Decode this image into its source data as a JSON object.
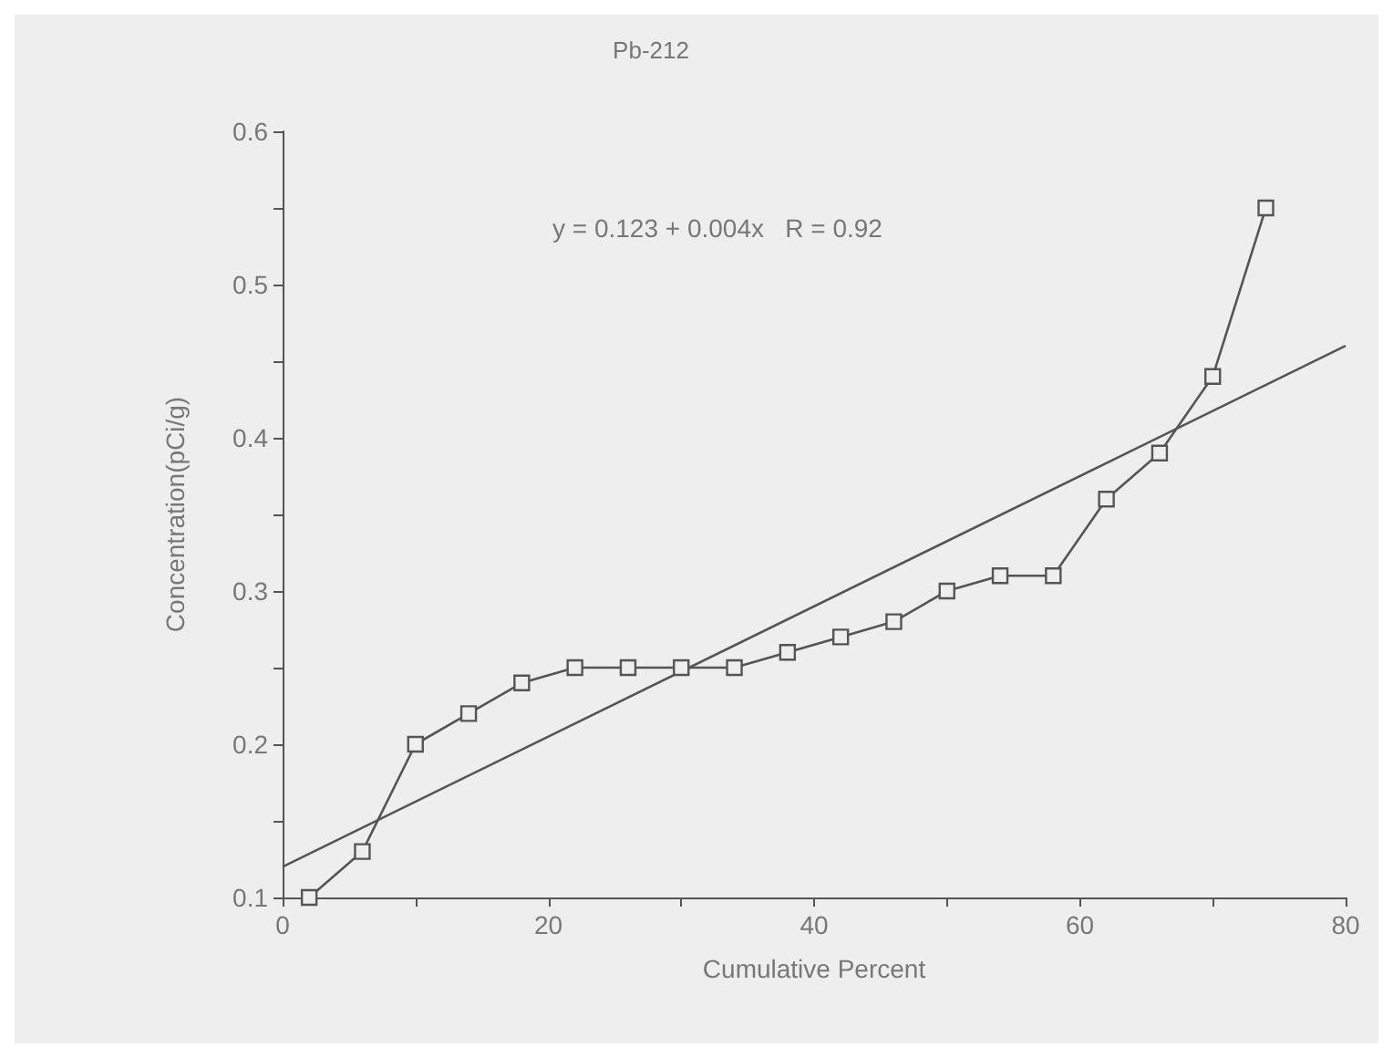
{
  "chart_data": {
    "type": "line",
    "title": "Pb-212",
    "xlabel": "Cumulative Percent",
    "ylabel": "Concentration(pCi/g)",
    "annotations": [
      "y = 0.123 + 0.004x   R = 0.92"
    ],
    "xlim": [
      0,
      80
    ],
    "xticks": [
      0,
      {
        "value": 10,
        "label": null
      },
      20,
      {
        "value": 30,
        "label": null
      },
      40,
      {
        "value": 50,
        "label": null
      },
      60,
      {
        "value": 70,
        "label": null
      },
      80
    ],
    "ylim": [
      0.1,
      0.6
    ],
    "yticks": [
      0.1,
      {
        "value": 0.15,
        "label": null
      },
      0.2,
      {
        "value": 0.25,
        "label": null
      },
      0.3,
      {
        "value": 0.35,
        "label": null
      },
      0.4,
      {
        "value": 0.45,
        "label": null
      },
      0.5,
      {
        "value": 0.55,
        "label": null
      },
      0.6
    ],
    "grid": false,
    "series": [
      {
        "color": "#555555",
        "marker": "square",
        "x": [
          2,
          6,
          10,
          14,
          18,
          22,
          26,
          30,
          34,
          38,
          42,
          46,
          50,
          54,
          58,
          62,
          66,
          70,
          74
        ],
        "values": [
          0.1,
          0.13,
          0.2,
          0.22,
          0.24,
          0.25,
          0.25,
          0.25,
          0.25,
          0.26,
          0.27,
          0.28,
          0.3,
          0.31,
          0.31,
          0.36,
          0.39,
          0.44,
          0.55
        ]
      },
      {
        "type": "line",
        "color": "#555555",
        "marker": "none",
        "x": [
          0,
          80
        ],
        "values": [
          0.12,
          0.46
        ]
      }
    ]
  }
}
